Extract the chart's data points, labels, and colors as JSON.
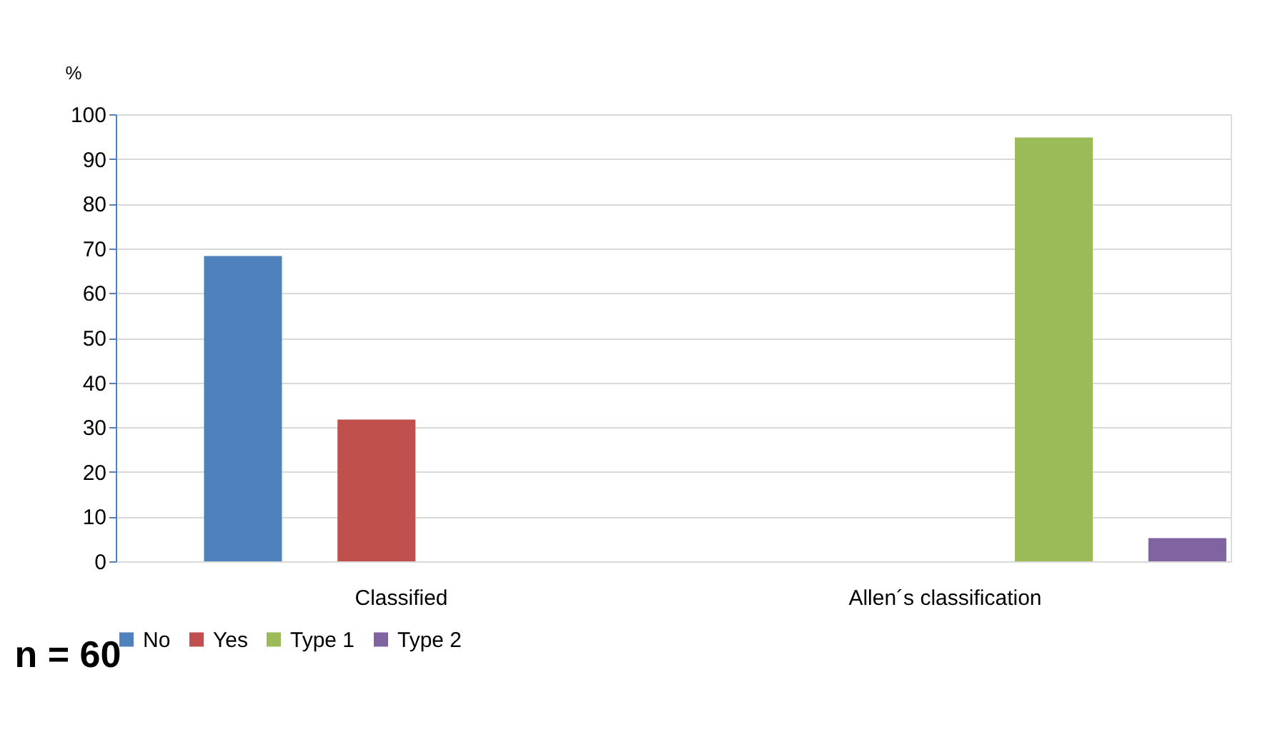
{
  "chart_data": {
    "type": "bar",
    "ylabel": "%",
    "categories": [
      "Classified",
      "Allen´s classification"
    ],
    "series": [
      {
        "name": "No",
        "color": "#4f81bd",
        "values": [
          68.3,
          null
        ]
      },
      {
        "name": "Yes",
        "color": "#c0504d",
        "values": [
          31.7,
          null
        ]
      },
      {
        "name": "Type 1",
        "color": "#9bbb59",
        "values": [
          null,
          94.8
        ]
      },
      {
        "name": "Type 2",
        "color": "#8064a2",
        "values": [
          null,
          5.2
        ]
      }
    ],
    "ylim": [
      0,
      100
    ],
    "yticks": [
      0,
      10,
      20,
      30,
      40,
      50,
      60,
      70,
      80,
      90,
      100
    ],
    "grid": "y",
    "legend": "bottom",
    "annotations": [
      "n = 60"
    ]
  }
}
